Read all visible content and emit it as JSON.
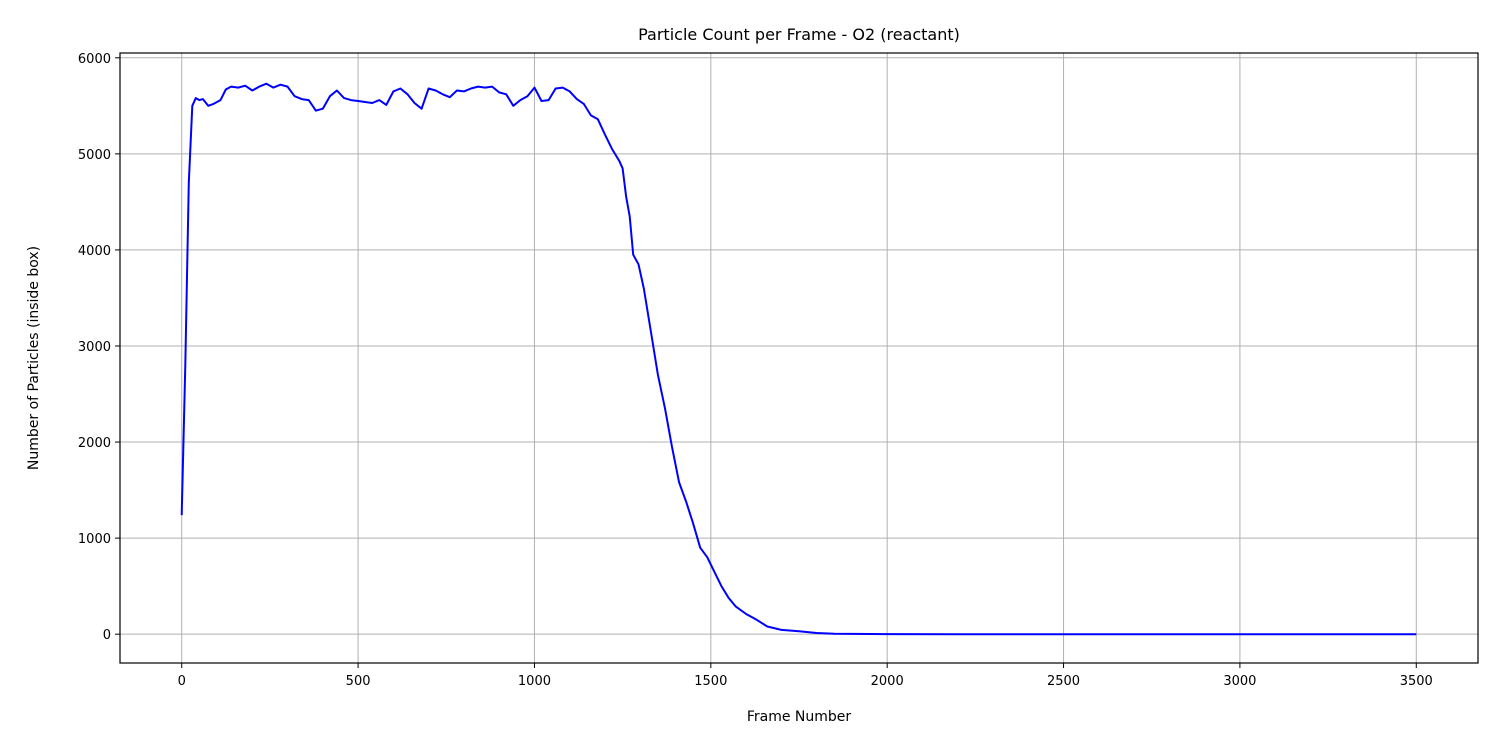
{
  "chart_data": {
    "type": "line",
    "title": "Particle Count per Frame - O2 (reactant)",
    "xlabel": "Frame Number",
    "ylabel": "Number of Particles (inside box)",
    "xlim": [
      -175,
      3675
    ],
    "ylim": [
      -300,
      6050
    ],
    "xticks": [
      0,
      500,
      1000,
      1500,
      2000,
      2500,
      3000,
      3500
    ],
    "yticks": [
      0,
      1000,
      2000,
      3000,
      4000,
      5000,
      6000
    ],
    "grid": true,
    "legend": "none",
    "series": [
      {
        "color": "#0000ff",
        "points": [
          [
            0,
            1240
          ],
          [
            10,
            2800
          ],
          [
            20,
            4700
          ],
          [
            30,
            5500
          ],
          [
            40,
            5580
          ],
          [
            50,
            5560
          ],
          [
            60,
            5570
          ],
          [
            75,
            5500
          ],
          [
            90,
            5520
          ],
          [
            110,
            5560
          ],
          [
            125,
            5670
          ],
          [
            140,
            5700
          ],
          [
            160,
            5690
          ],
          [
            180,
            5710
          ],
          [
            200,
            5660
          ],
          [
            220,
            5700
          ],
          [
            240,
            5730
          ],
          [
            260,
            5690
          ],
          [
            280,
            5720
          ],
          [
            300,
            5700
          ],
          [
            320,
            5600
          ],
          [
            340,
            5570
          ],
          [
            360,
            5560
          ],
          [
            380,
            5450
          ],
          [
            400,
            5470
          ],
          [
            420,
            5600
          ],
          [
            440,
            5660
          ],
          [
            460,
            5580
          ],
          [
            480,
            5560
          ],
          [
            500,
            5550
          ],
          [
            520,
            5540
          ],
          [
            540,
            5530
          ],
          [
            560,
            5560
          ],
          [
            580,
            5510
          ],
          [
            600,
            5650
          ],
          [
            620,
            5680
          ],
          [
            640,
            5620
          ],
          [
            660,
            5530
          ],
          [
            680,
            5470
          ],
          [
            700,
            5680
          ],
          [
            720,
            5660
          ],
          [
            740,
            5620
          ],
          [
            760,
            5590
          ],
          [
            780,
            5660
          ],
          [
            800,
            5650
          ],
          [
            820,
            5680
          ],
          [
            840,
            5700
          ],
          [
            860,
            5690
          ],
          [
            880,
            5700
          ],
          [
            900,
            5640
          ],
          [
            920,
            5620
          ],
          [
            940,
            5500
          ],
          [
            960,
            5560
          ],
          [
            980,
            5600
          ],
          [
            1000,
            5690
          ],
          [
            1020,
            5550
          ],
          [
            1040,
            5560
          ],
          [
            1060,
            5680
          ],
          [
            1080,
            5690
          ],
          [
            1100,
            5650
          ],
          [
            1120,
            5570
          ],
          [
            1140,
            5520
          ],
          [
            1160,
            5400
          ],
          [
            1180,
            5360
          ],
          [
            1200,
            5200
          ],
          [
            1220,
            5050
          ],
          [
            1240,
            4930
          ],
          [
            1250,
            4850
          ],
          [
            1260,
            4550
          ],
          [
            1270,
            4350
          ],
          [
            1280,
            3950
          ],
          [
            1295,
            3850
          ],
          [
            1310,
            3600
          ],
          [
            1330,
            3150
          ],
          [
            1350,
            2700
          ],
          [
            1370,
            2350
          ],
          [
            1390,
            1950
          ],
          [
            1410,
            1580
          ],
          [
            1430,
            1380
          ],
          [
            1450,
            1150
          ],
          [
            1470,
            900
          ],
          [
            1490,
            800
          ],
          [
            1510,
            650
          ],
          [
            1530,
            500
          ],
          [
            1550,
            380
          ],
          [
            1570,
            290
          ],
          [
            1600,
            210
          ],
          [
            1630,
            150
          ],
          [
            1660,
            80
          ],
          [
            1700,
            45
          ],
          [
            1750,
            30
          ],
          [
            1800,
            12
          ],
          [
            1850,
            5
          ],
          [
            1900,
            3
          ],
          [
            2000,
            1
          ],
          [
            2200,
            0
          ],
          [
            2600,
            0
          ],
          [
            3000,
            0
          ],
          [
            3500,
            0
          ]
        ]
      }
    ]
  }
}
